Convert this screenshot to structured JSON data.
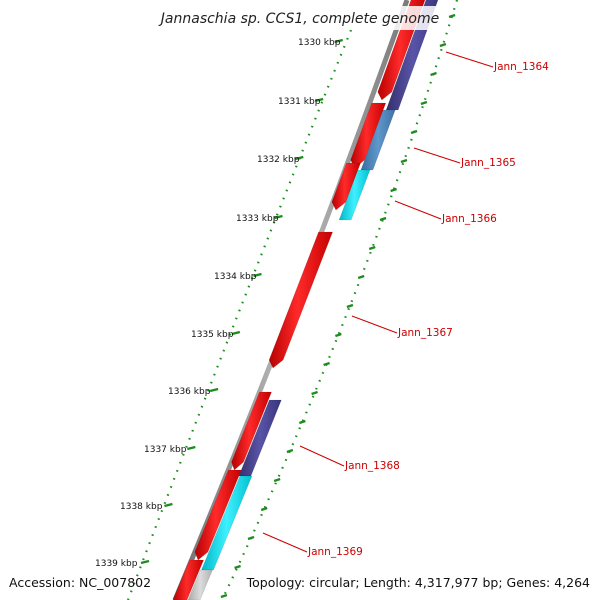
{
  "title": "Jannaschia sp. CCS1, complete genome",
  "footer": {
    "accession": "Accession: NC_007802",
    "summary": "Topology: circular; Length: 4,317,977 bp; Genes: 4,264"
  },
  "colors": {
    "backbone": "#8c8c8c",
    "tick_dots": "#1e8c1e",
    "gene_red": "#ee1111",
    "gene_navy": "#4a4490",
    "gene_steel": "#4f86b8",
    "gene_cyan": "#11d8e6",
    "gene_grey": "#c4c4c4",
    "label_red": "#cc0000"
  },
  "scale_labels": [
    {
      "value_kbp": 1330,
      "text": "1330 kbp"
    },
    {
      "value_kbp": 1331,
      "text": "1331 kbp"
    },
    {
      "value_kbp": 1332,
      "text": "1332 kbp"
    },
    {
      "value_kbp": 1333,
      "text": "1333 kbp"
    },
    {
      "value_kbp": 1334,
      "text": "1334 kbp"
    },
    {
      "value_kbp": 1335,
      "text": "1335 kbp"
    },
    {
      "value_kbp": 1336,
      "text": "1336 kbp"
    },
    {
      "value_kbp": 1337,
      "text": "1337 kbp"
    },
    {
      "value_kbp": 1338,
      "text": "1338 kbp"
    },
    {
      "value_kbp": 1339,
      "text": "1339 kbp"
    }
  ],
  "gene_labels": [
    {
      "name": "Jann_1364"
    },
    {
      "name": "Jann_1365"
    },
    {
      "name": "Jann_1366"
    },
    {
      "name": "Jann_1367"
    },
    {
      "name": "Jann_1368"
    },
    {
      "name": "Jann_1369"
    }
  ]
}
